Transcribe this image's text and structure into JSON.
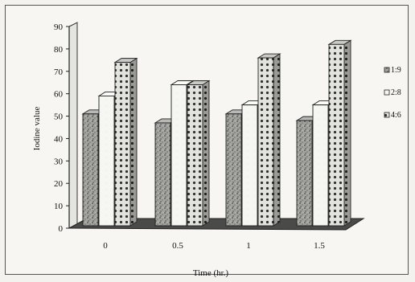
{
  "chart_data": {
    "type": "bar",
    "style": "3d-clustered",
    "categories": [
      "0",
      "0.5",
      "1",
      "1.5"
    ],
    "series": [
      {
        "name": "1:9",
        "values": [
          51,
          47,
          51,
          48
        ],
        "pattern": "speckled-gray"
      },
      {
        "name": "2:8",
        "values": [
          59,
          64,
          55,
          55
        ],
        "pattern": "light-plain"
      },
      {
        "name": "4:6",
        "values": [
          74,
          64,
          76,
          82
        ],
        "pattern": "dotted-dark"
      }
    ],
    "title": "",
    "xlabel": "Time (hr.)",
    "ylabel": "Iodine value",
    "ylim": [
      0,
      90
    ],
    "yticks": [
      0,
      10,
      20,
      30,
      40,
      50,
      60,
      70,
      80,
      90
    ],
    "grid": false,
    "legend_position": "right",
    "colors": {
      "frame_border": "#555555",
      "bar_outline": "#222222",
      "speckle_fill": "#9a9a98",
      "light_fill": "#f4f4f0",
      "dot_fill": "#d8d8d4",
      "floor_fill": "#4a4a48"
    }
  }
}
